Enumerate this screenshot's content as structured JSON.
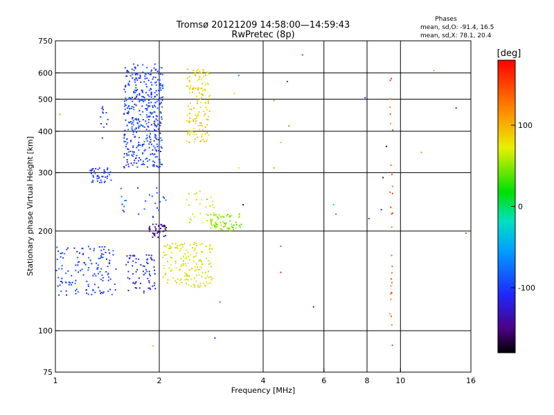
{
  "chart_data": {
    "type": "scatter",
    "title": "Tromsø 20121209 14:58:00—14:59:43",
    "subtitle": "RwPretec (8p)",
    "stats_header": "Phases",
    "stats_o": "mean, sd,O: -91.4, 16.5",
    "stats_x": "mean, sd,X:  78.1, 20.4",
    "xlabel": "Frequency [MHz]",
    "ylabel": "Stationary phase Virtual Height [km]",
    "x_scale": "log",
    "y_scale": "log",
    "xlim": [
      1,
      16
    ],
    "ylim": [
      75,
      750
    ],
    "x_ticks": [
      1,
      2,
      4,
      6,
      8,
      10,
      16
    ],
    "y_ticks": [
      75,
      100,
      200,
      300,
      400,
      500,
      600,
      750
    ],
    "x_grid": [
      2,
      4,
      6,
      8,
      10
    ],
    "y_grid": [
      100,
      200,
      300,
      400,
      500,
      600
    ],
    "grid": true,
    "colorbar": {
      "label": "[deg]",
      "range": [
        -180,
        180
      ],
      "ticks": [
        100,
        0,
        -100
      ]
    },
    "clusters": [
      {
        "fmin": 1.58,
        "fmax": 2.05,
        "hmin": 310,
        "hmax": 640,
        "phase": -95,
        "n": 420
      },
      {
        "fmin": 1.25,
        "fmax": 1.45,
        "hmin": 280,
        "hmax": 310,
        "phase": -100,
        "n": 45
      },
      {
        "fmin": 1.35,
        "fmax": 1.42,
        "hmin": 380,
        "hmax": 480,
        "phase": -100,
        "n": 12
      },
      {
        "fmin": 2.4,
        "fmax": 2.8,
        "hmin": 370,
        "hmax": 620,
        "phase": 85,
        "n": 140
      },
      {
        "fmin": 1.0,
        "fmax": 1.5,
        "hmin": 128,
        "hmax": 180,
        "phase": -95,
        "n": 140
      },
      {
        "fmin": 1.6,
        "fmax": 1.95,
        "hmin": 130,
        "hmax": 170,
        "phase": -110,
        "n": 70
      },
      {
        "fmin": 1.85,
        "fmax": 2.1,
        "hmin": 190,
        "hmax": 210,
        "phase": -145,
        "n": 40
      },
      {
        "fmin": 2.05,
        "fmax": 2.85,
        "hmin": 135,
        "hmax": 185,
        "phase": 75,
        "n": 160
      },
      {
        "fmin": 2.8,
        "fmax": 3.5,
        "hmin": 200,
        "hmax": 225,
        "phase": 45,
        "n": 70
      },
      {
        "fmin": 2.4,
        "fmax": 2.9,
        "hmin": 210,
        "hmax": 270,
        "phase": 60,
        "n": 30
      },
      {
        "fmin": 1.5,
        "fmax": 2.1,
        "hmin": 220,
        "hmax": 270,
        "phase": -90,
        "n": 25
      },
      {
        "fmin": 9.3,
        "fmax": 9.5,
        "hmin": 80,
        "hmax": 580,
        "phase": 140,
        "n": 30
      }
    ],
    "sparse_points": [
      [
        5.2,
        680,
        160
      ],
      [
        4.7,
        565,
        -100
      ],
      [
        7.9,
        505,
        -100
      ],
      [
        4.75,
        415,
        130
      ],
      [
        4.3,
        495,
        120
      ],
      [
        4.5,
        370,
        50
      ],
      [
        4.3,
        310,
        110
      ],
      [
        6.4,
        240,
        -20
      ],
      [
        6.5,
        225,
        150
      ],
      [
        8.1,
        218,
        -100
      ],
      [
        8.8,
        232,
        -120
      ],
      [
        8.9,
        290,
        -150
      ],
      [
        9.1,
        360,
        -170
      ],
      [
        11.5,
        345,
        110
      ],
      [
        12.5,
        610,
        100
      ],
      [
        14.5,
        470,
        -110
      ],
      [
        15.5,
        197,
        150
      ],
      [
        4.5,
        180,
        150
      ],
      [
        4.5,
        150,
        160
      ],
      [
        5.6,
        118,
        -120
      ],
      [
        2.9,
        95,
        -100
      ],
      [
        3.0,
        122,
        150
      ],
      [
        3.5,
        240,
        -170
      ],
      [
        3.4,
        590,
        -60
      ],
      [
        3.4,
        310,
        80
      ],
      [
        3.3,
        520,
        80
      ],
      [
        1.92,
        90,
        100
      ],
      [
        1.03,
        450,
        110
      ],
      [
        3.6,
        75,
        120
      ],
      [
        9.45,
        75,
        140
      ]
    ]
  }
}
